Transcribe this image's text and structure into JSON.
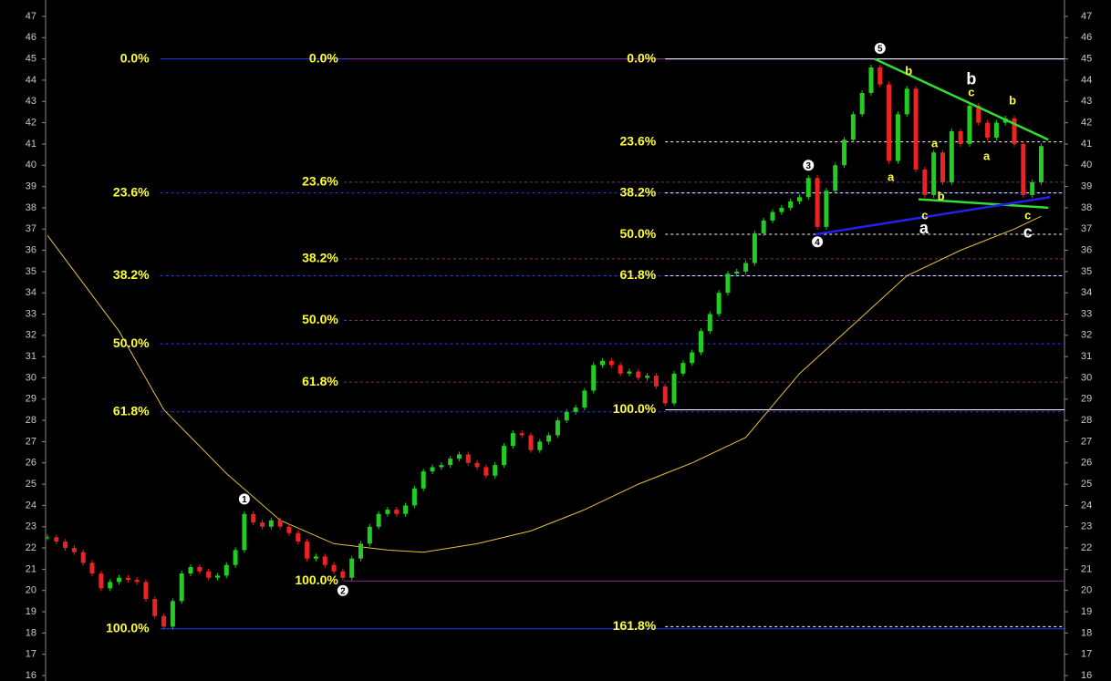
{
  "chart_data": {
    "type": "candlestick",
    "up_color": "#22cc22",
    "down_color": "#ee2222",
    "xlim": [
      -0.2,
      113.6
    ],
    "ylim": [
      16,
      47
    ],
    "yticks": [
      16,
      17,
      18,
      19,
      20,
      21,
      22,
      23,
      24,
      25,
      26,
      27,
      28,
      29,
      30,
      31,
      32,
      33,
      34,
      35,
      36,
      37,
      38,
      39,
      40,
      41,
      42,
      43,
      44,
      45,
      46,
      47
    ],
    "close": [
      22.5,
      22.3,
      22.0,
      21.8,
      21.3,
      20.8,
      20.1,
      20.4,
      20.6,
      20.5,
      20.4,
      19.6,
      18.8,
      18.3,
      19.5,
      20.8,
      21.1,
      20.9,
      20.6,
      20.7,
      21.2,
      21.9,
      23.6,
      23.2,
      23.0,
      23.3,
      23.0,
      22.7,
      22.3,
      21.5,
      21.6,
      21.2,
      20.9,
      20.6,
      21.5,
      22.2,
      23.0,
      23.6,
      23.8,
      23.6,
      24.0,
      24.8,
      25.6,
      25.8,
      25.9,
      26.2,
      26.4,
      26.0,
      25.8,
      25.4,
      25.9,
      26.8,
      27.4,
      27.3,
      26.6,
      27.0,
      27.3,
      28.0,
      28.4,
      28.6,
      29.4,
      30.6,
      30.8,
      30.6,
      30.2,
      30.3,
      30.0,
      30.1,
      29.6,
      28.8,
      30.2,
      30.7,
      31.2,
      32.2,
      33.0,
      34.0,
      34.9,
      35.0,
      35.4,
      36.8,
      37.4,
      37.8,
      38.0,
      38.3,
      38.5,
      39.4,
      37.1,
      38.8,
      40.0,
      41.2,
      42.4,
      43.4,
      44.6,
      43.8,
      40.2,
      42.4,
      43.6,
      39.8,
      38.6,
      40.6,
      39.2,
      41.6,
      41.0,
      42.8,
      42.0,
      41.3,
      42.0,
      42.2,
      41.0,
      38.6,
      39.2,
      40.9
    ],
    "moving_average": {
      "color": "#e8c040",
      "x": [
        0,
        8,
        13,
        20,
        26,
        32,
        38,
        42,
        48,
        54,
        60,
        66,
        72,
        78,
        84,
        90,
        96,
        102,
        108,
        111
      ],
      "values": [
        36.7,
        32.2,
        28.5,
        25.5,
        23.3,
        22.2,
        21.9,
        21.8,
        22.2,
        22.8,
        23.8,
        25.0,
        26.0,
        27.2,
        30.2,
        32.5,
        34.8,
        36.0,
        37.0,
        37.6
      ]
    },
    "fibonacci": [
      {
        "color": "#2b3bff",
        "start": 12.6,
        "levels": [
          {
            "label": "0.0%",
            "value": 45,
            "dashed": false
          },
          {
            "label": "23.6%",
            "value": 38.7,
            "dashed": true
          },
          {
            "label": "38.2%",
            "value": 34.8,
            "dashed": true
          },
          {
            "label": "50.0%",
            "value": 31.6,
            "dashed": true
          },
          {
            "label": "61.8%",
            "value": 28.4,
            "dashed": true
          },
          {
            "label": "100.0%",
            "value": 18.2,
            "dashed": false
          }
        ]
      },
      {
        "color": "#8a2a8a",
        "start": 33.1,
        "levels": [
          {
            "label": "0.0%",
            "value": 45,
            "dashed": false
          },
          {
            "label": "23.6%",
            "value": 39.2,
            "dashed": true
          },
          {
            "label": "38.2%",
            "value": 35.6,
            "dashed": true
          },
          {
            "label": "50.0%",
            "value": 32.7,
            "dashed": true
          },
          {
            "label": "61.8%",
            "value": 29.8,
            "dashed": true
          },
          {
            "label": "100.0%",
            "value": 20.45,
            "dashed": false
          }
        ]
      },
      {
        "color": "#ffffff",
        "start": 69,
        "levels": [
          {
            "label": "0.0%",
            "value": 45,
            "dashed": false
          },
          {
            "label": "23.6%",
            "value": 41.1,
            "dashed": true
          },
          {
            "label": "38.2%",
            "value": 38.7,
            "dashed": true
          },
          {
            "label": "50.0%",
            "value": 36.75,
            "dashed": true
          },
          {
            "label": "61.8%",
            "value": 34.8,
            "dashed": true
          },
          {
            "label": "100.0%",
            "value": 28.5,
            "dashed": false
          },
          {
            "label": "161.8%",
            "value": 18.3,
            "dashed": true
          }
        ]
      }
    ],
    "trendlines": [
      {
        "color": "#33dd33",
        "x": [
          92.4,
          111.8
        ],
        "values": [
          45.0,
          41.2
        ]
      },
      {
        "color": "#33dd33",
        "x": [
          97.3,
          111.8
        ],
        "values": [
          38.4,
          38.0
        ]
      },
      {
        "color": "#2222ee",
        "x": [
          85.8,
          112.0
        ],
        "values": [
          36.75,
          38.5
        ]
      }
    ],
    "annotations": [
      {
        "text": "1",
        "x": 22,
        "y": 24.3,
        "style": "circle"
      },
      {
        "text": "2",
        "x": 33,
        "y": 20.0,
        "style": "circle"
      },
      {
        "text": "3",
        "x": 85,
        "y": 40.0,
        "style": "circle"
      },
      {
        "text": "4",
        "x": 86,
        "y": 36.4,
        "style": "circle"
      },
      {
        "text": "5",
        "x": 93,
        "y": 45.5,
        "style": "circle"
      },
      {
        "text": "a",
        "x": 94.2,
        "y": 39.4,
        "style": "small"
      },
      {
        "text": "b",
        "x": 96.2,
        "y": 44.4,
        "style": "small"
      },
      {
        "text": "a",
        "x": 99.1,
        "y": 41.0,
        "style": "small"
      },
      {
        "text": "c",
        "x": 98.0,
        "y": 37.6,
        "style": "small"
      },
      {
        "text": "b",
        "x": 99.8,
        "y": 38.5,
        "style": "small"
      },
      {
        "text": "c",
        "x": 103.2,
        "y": 43.4,
        "style": "small"
      },
      {
        "text": "a",
        "x": 104.9,
        "y": 40.4,
        "style": "small"
      },
      {
        "text": "b",
        "x": 107.8,
        "y": 43.0,
        "style": "small"
      },
      {
        "text": "c",
        "x": 109.5,
        "y": 37.6,
        "style": "small"
      },
      {
        "text": "b",
        "x": 103.2,
        "y": 44.0,
        "style": "big"
      },
      {
        "text": "a",
        "x": 97.9,
        "y": 37.0,
        "style": "big"
      },
      {
        "text": "c",
        "x": 109.5,
        "y": 36.8,
        "style": "big"
      }
    ]
  }
}
